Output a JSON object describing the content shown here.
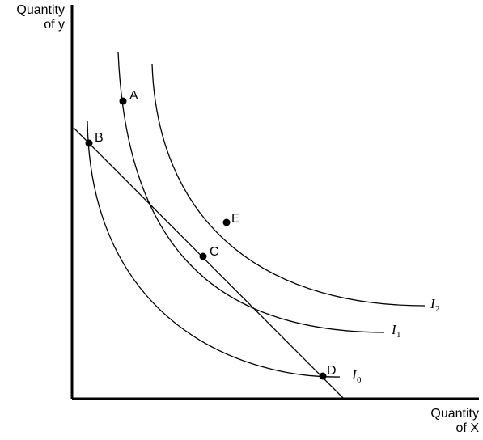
{
  "axes": {
    "y_label_line1": "Quantity",
    "y_label_line2": "of y",
    "x_label_line1": "Quantity",
    "x_label_line2": "of X"
  },
  "points": [
    {
      "id": "a",
      "label": "A"
    },
    {
      "id": "b",
      "label": "B"
    },
    {
      "id": "c",
      "label": "C"
    },
    {
      "id": "d",
      "label": "D"
    },
    {
      "id": "e",
      "label": "E"
    }
  ],
  "curves": [
    {
      "id": "i0",
      "label": "I",
      "subscript": "0"
    },
    {
      "id": "i1",
      "label": "I",
      "subscript": "1"
    },
    {
      "id": "i2",
      "label": "I",
      "subscript": "2"
    }
  ],
  "colors": {
    "ink": "#000000",
    "background": "#ffffff"
  }
}
